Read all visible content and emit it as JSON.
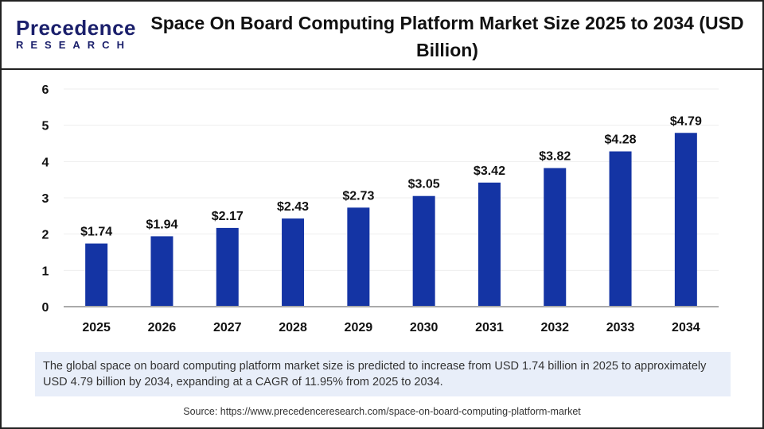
{
  "logo": {
    "line1": "Precedence",
    "line2": "RESEARCH"
  },
  "title": "Space On Board Computing Platform Market Size 2025 to 2034 (USD Billion)",
  "chart_data": {
    "type": "bar",
    "categories": [
      "2025",
      "2026",
      "2027",
      "2028",
      "2029",
      "2030",
      "2031",
      "2032",
      "2033",
      "2034"
    ],
    "values": [
      1.74,
      1.94,
      2.17,
      2.43,
      2.73,
      3.05,
      3.42,
      3.82,
      4.28,
      4.79
    ],
    "data_labels": [
      "$1.74",
      "$1.94",
      "$2.17",
      "$2.43",
      "$2.73",
      "$3.05",
      "$3.42",
      "$3.82",
      "$4.28",
      "$4.79"
    ],
    "yticks": [
      "0",
      "1",
      "2",
      "3",
      "4",
      "5",
      "6"
    ],
    "ylim": [
      0,
      6
    ],
    "grid": true,
    "bar_color": "#1434a4"
  },
  "note": "The global space on board computing platform market size is predicted to increase from USD 1.74 billion in 2025 to approximately USD 4.79 billion by 2034, expanding at a CAGR of 11.95% from 2025 to 2034.",
  "source": "Source: https://www.precedenceresearch.com/space-on-board-computing-platform-market"
}
